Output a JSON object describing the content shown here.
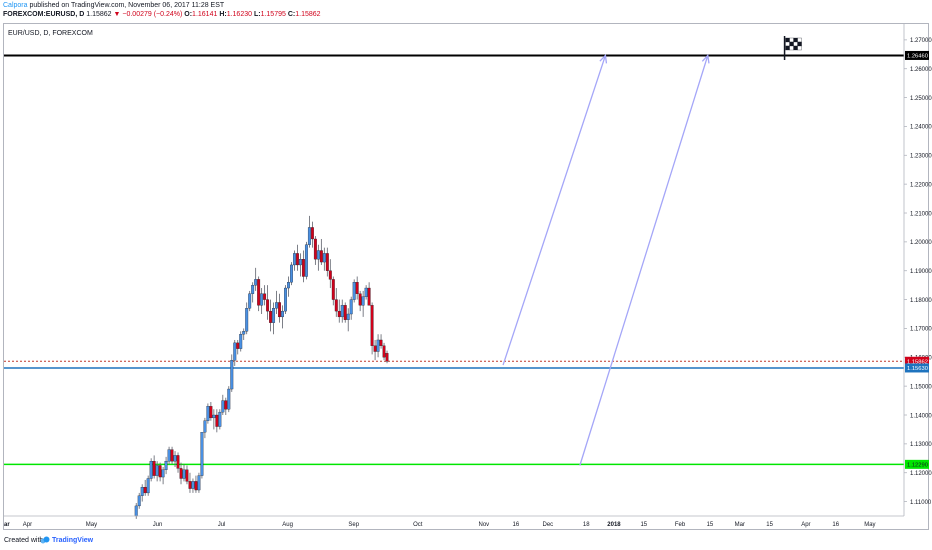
{
  "header": {
    "author": "Calpora",
    "published": "published on TradingView.com, November 06, 2017 11:28 EST",
    "symbol": "FOREXCOM:EURUSD, D",
    "last": "1.15862",
    "change": "▼ −0.00279 (−0.24%)",
    "o_label": "O:",
    "o": "1.16141",
    "h_label": "H:",
    "h": "1.16230",
    "l_label": "L:",
    "l": "1.15795",
    "c_label": "C:",
    "c": "1.15862"
  },
  "footer": {
    "created_with": "Created with",
    "brand": "TradingView"
  },
  "colors": {
    "up": "#4a90e2",
    "down": "#d0021b",
    "wick": "#5d606b",
    "arrow": "#a4a6f8",
    "green": "#00e600",
    "blue_line": "#1e73be",
    "price_line": "#c0392b"
  },
  "chart_data": {
    "type": "candlestick",
    "legend": "EUR/USD, D, FOREXCOM",
    "ylim": [
      1.105,
      1.2755
    ],
    "y_ticks": [
      1.27,
      1.26,
      1.25,
      1.24,
      1.23,
      1.22,
      1.21,
      1.2,
      1.19,
      1.18,
      1.17,
      1.16,
      1.15,
      1.14,
      1.13,
      1.12,
      1.11
    ],
    "y_tick_labels": [
      "1.27000",
      "1.26000",
      "1.25000",
      "1.24000",
      "1.23000",
      "1.22000",
      "1.21000",
      "1.20000",
      "1.19000",
      "1.18000",
      "1.17000",
      "1.16000",
      "1.15000",
      "1.14000",
      "1.13000",
      "1.12000",
      "1.11000"
    ],
    "x_ticks": [
      {
        "label": "ar",
        "day": 0
      },
      {
        "label": "Apr",
        "day": 11
      },
      {
        "label": "May",
        "day": 41
      },
      {
        "label": "Jun",
        "day": 72
      },
      {
        "label": "Jul",
        "day": 102
      },
      {
        "label": "Aug",
        "day": 133
      },
      {
        "label": "Sep",
        "day": 164
      },
      {
        "label": "Oct",
        "day": 194
      },
      {
        "label": "Nov",
        "day": 225
      },
      {
        "label": "16",
        "day": 240
      },
      {
        "label": "Dec",
        "day": 255
      },
      {
        "label": "18",
        "day": 273
      },
      {
        "label": "2018",
        "day": 286
      },
      {
        "label": "15",
        "day": 300
      },
      {
        "label": "Feb",
        "day": 317
      },
      {
        "label": "15",
        "day": 331
      },
      {
        "label": "Mar",
        "day": 345
      },
      {
        "label": "15",
        "day": 359
      },
      {
        "label": "Apr",
        "day": 376
      },
      {
        "label": "16",
        "day": 390
      },
      {
        "label": "May",
        "day": 406
      }
    ],
    "x_bold": [
      1,
      0,
      0,
      0,
      0,
      0,
      0,
      0,
      0,
      0,
      0,
      0,
      1,
      0,
      0,
      0,
      0,
      0,
      0,
      0,
      0
    ],
    "x_range_days": [
      0,
      422
    ],
    "price_labels": [
      {
        "value": 1.2646,
        "text": "1.26460",
        "kind": "black"
      },
      {
        "value": 1.15862,
        "text": "1.15862",
        "kind": "red"
      },
      {
        "value": 1.1563,
        "text": "1.15630",
        "kind": "blue"
      },
      {
        "value": 1.1229,
        "text": "1.12290",
        "kind": "green"
      }
    ],
    "hlines": [
      {
        "value": 1.2646,
        "color": "#000000",
        "width": 2
      },
      {
        "value": 1.1563,
        "color": "#1e73be",
        "width": 1.5
      },
      {
        "value": 1.1229,
        "color": "#00e600",
        "width": 1.5
      },
      {
        "value": 1.15862,
        "color": "#c0392b",
        "width": 1,
        "dashed": true
      }
    ],
    "arrows": [
      {
        "x1_day": 234,
        "y1": 1.1573,
        "x2_day": 282,
        "y2": 1.2646
      },
      {
        "x1_day": 270,
        "y1": 1.1225,
        "x2_day": 330,
        "y2": 1.2646
      }
    ],
    "flag_day": 366,
    "candles": {
      "start_day": 62,
      "step_days": 1.4,
      "data": [
        [
          1.105,
          1.1095,
          1.104,
          1.1085
        ],
        [
          1.1085,
          1.113,
          1.1075,
          1.112
        ],
        [
          1.112,
          1.116,
          1.11,
          1.115
        ],
        [
          1.115,
          1.1175,
          1.112,
          1.113
        ],
        [
          1.113,
          1.119,
          1.112,
          1.118
        ],
        [
          1.118,
          1.125,
          1.117,
          1.124
        ],
        [
          1.124,
          1.126,
          1.118,
          1.119
        ],
        [
          1.119,
          1.124,
          1.117,
          1.1225
        ],
        [
          1.1225,
          1.1235,
          1.117,
          1.1185
        ],
        [
          1.1185,
          1.122,
          1.116,
          1.121
        ],
        [
          1.121,
          1.1255,
          1.1195,
          1.124
        ],
        [
          1.124,
          1.129,
          1.123,
          1.128
        ],
        [
          1.128,
          1.129,
          1.123,
          1.124
        ],
        [
          1.124,
          1.1275,
          1.122,
          1.126
        ],
        [
          1.126,
          1.127,
          1.12,
          1.1215
        ],
        [
          1.1215,
          1.1235,
          1.116,
          1.118
        ],
        [
          1.118,
          1.123,
          1.117,
          1.121
        ],
        [
          1.121,
          1.1225,
          1.116,
          1.117
        ],
        [
          1.117,
          1.12,
          1.113,
          1.1145
        ],
        [
          1.1145,
          1.118,
          1.113,
          1.117
        ],
        [
          1.117,
          1.119,
          1.113,
          1.114
        ],
        [
          1.114,
          1.12,
          1.113,
          1.119
        ],
        [
          1.119,
          1.134,
          1.118,
          1.134
        ],
        [
          1.134,
          1.139,
          1.132,
          1.138
        ],
        [
          1.138,
          1.144,
          1.137,
          1.143
        ],
        [
          1.143,
          1.1445,
          1.138,
          1.139
        ],
        [
          1.139,
          1.142,
          1.135,
          1.14
        ],
        [
          1.14,
          1.142,
          1.134,
          1.136
        ],
        [
          1.136,
          1.142,
          1.135,
          1.141
        ],
        [
          1.141,
          1.147,
          1.14,
          1.145
        ],
        [
          1.145,
          1.146,
          1.14,
          1.142
        ],
        [
          1.142,
          1.15,
          1.141,
          1.149
        ],
        [
          1.149,
          1.161,
          1.148,
          1.159
        ],
        [
          1.159,
          1.166,
          1.157,
          1.165
        ],
        [
          1.165,
          1.166,
          1.161,
          1.163
        ],
        [
          1.163,
          1.169,
          1.162,
          1.168
        ],
        [
          1.168,
          1.17,
          1.166,
          1.169
        ],
        [
          1.169,
          1.179,
          1.168,
          1.177
        ],
        [
          1.177,
          1.183,
          1.176,
          1.182
        ],
        [
          1.182,
          1.186,
          1.179,
          1.185
        ],
        [
          1.185,
          1.191,
          1.183,
          1.187
        ],
        [
          1.187,
          1.188,
          1.176,
          1.178
        ],
        [
          1.178,
          1.184,
          1.175,
          1.182
        ],
        [
          1.182,
          1.185,
          1.178,
          1.18
        ],
        [
          1.18,
          1.185,
          1.173,
          1.176
        ],
        [
          1.176,
          1.18,
          1.169,
          1.172
        ],
        [
          1.172,
          1.179,
          1.168,
          1.177
        ],
        [
          1.177,
          1.183,
          1.175,
          1.179
        ],
        [
          1.179,
          1.182,
          1.172,
          1.174
        ],
        [
          1.174,
          1.178,
          1.17,
          1.176
        ],
        [
          1.176,
          1.185,
          1.175,
          1.184
        ],
        [
          1.184,
          1.188,
          1.181,
          1.186
        ],
        [
          1.186,
          1.193,
          1.185,
          1.192
        ],
        [
          1.192,
          1.197,
          1.19,
          1.196
        ],
        [
          1.196,
          1.199,
          1.19,
          1.192
        ],
        [
          1.192,
          1.196,
          1.188,
          1.194
        ],
        [
          1.194,
          1.197,
          1.186,
          1.188
        ],
        [
          1.188,
          1.2,
          1.187,
          1.199
        ],
        [
          1.199,
          1.209,
          1.198,
          1.205
        ],
        [
          1.205,
          1.207,
          1.198,
          1.201
        ],
        [
          1.201,
          1.202,
          1.192,
          1.194
        ],
        [
          1.194,
          1.199,
          1.19,
          1.197
        ],
        [
          1.197,
          1.201,
          1.192,
          1.193
        ],
        [
          1.193,
          1.198,
          1.19,
          1.196
        ],
        [
          1.196,
          1.198,
          1.188,
          1.19
        ],
        [
          1.19,
          1.194,
          1.184,
          1.187
        ],
        [
          1.187,
          1.188,
          1.178,
          1.18
        ],
        [
          1.18,
          1.184,
          1.174,
          1.176
        ],
        [
          1.176,
          1.18,
          1.172,
          1.174
        ],
        [
          1.174,
          1.18,
          1.172,
          1.178
        ],
        [
          1.178,
          1.179,
          1.172,
          1.173
        ],
        [
          1.173,
          1.177,
          1.169,
          1.175
        ],
        [
          1.175,
          1.181,
          1.173,
          1.18
        ],
        [
          1.18,
          1.187,
          1.179,
          1.186
        ],
        [
          1.186,
          1.188,
          1.18,
          1.182
        ],
        [
          1.182,
          1.183,
          1.176,
          1.178
        ],
        [
          1.178,
          1.183,
          1.174,
          1.181
        ],
        [
          1.181,
          1.185,
          1.18,
          1.184
        ],
        [
          1.184,
          1.186,
          1.178,
          1.178
        ],
        [
          1.178,
          1.179,
          1.161,
          1.164
        ],
        [
          1.164,
          1.166,
          1.159,
          1.162
        ],
        [
          1.162,
          1.168,
          1.16,
          1.166
        ],
        [
          1.166,
          1.168,
          1.163,
          1.164
        ],
        [
          1.164,
          1.165,
          1.159,
          1.16
        ],
        [
          1.1614,
          1.1623,
          1.15795,
          1.15862
        ]
      ]
    }
  }
}
